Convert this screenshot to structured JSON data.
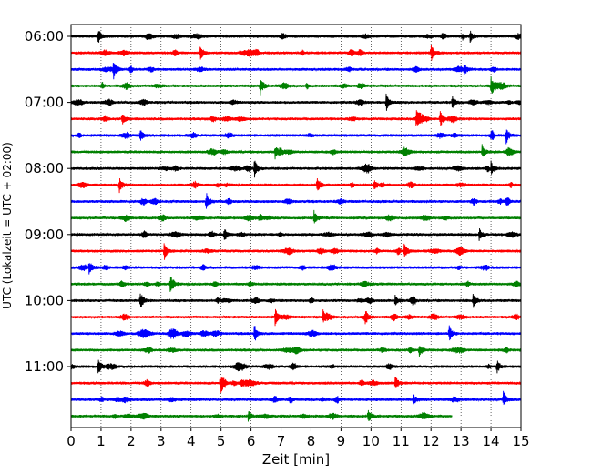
{
  "chart_data": {
    "type": "line",
    "title": "",
    "xlabel": "Zeit  [min]",
    "ylabel": "UTC (Lokalzeit = UTC + 02:00)",
    "xlim": [
      0,
      15
    ],
    "x_ticks": [
      "0",
      "1",
      "2",
      "3",
      "4",
      "5",
      "6",
      "7",
      "8",
      "9",
      "10",
      "11",
      "12",
      "13",
      "14",
      "15"
    ],
    "y_tick_labels": [
      "06:00",
      "07:00",
      "08:00",
      "09:00",
      "10:00",
      "11:00"
    ],
    "y_tick_rows": [
      0,
      4,
      8,
      12,
      16,
      20
    ],
    "rows": 24,
    "last_row_end_min": 12.7,
    "grid": "vertical dotted",
    "colors": [
      "#000000",
      "#ff0000",
      "#0000ff",
      "#008000"
    ],
    "events": [
      {
        "row": 0,
        "t": 13.3
      },
      {
        "row": 0,
        "t": 0.9
      },
      {
        "row": 1,
        "t": 12.0
      },
      {
        "row": 1,
        "t": 4.3
      },
      {
        "row": 2,
        "t": 1.4
      },
      {
        "row": 2,
        "t": 13.1
      },
      {
        "row": 3,
        "t": 14.0
      },
      {
        "row": 3,
        "t": 6.3
      },
      {
        "row": 4,
        "t": 12.7
      },
      {
        "row": 4,
        "t": 10.5
      },
      {
        "row": 5,
        "t": 1.7
      },
      {
        "row": 5,
        "t": 11.5
      },
      {
        "row": 5,
        "t": 12.3
      },
      {
        "row": 6,
        "t": 2.3
      },
      {
        "row": 6,
        "t": 14.5
      },
      {
        "row": 7,
        "t": 6.8
      },
      {
        "row": 7,
        "t": 13.7
      },
      {
        "row": 8,
        "t": 6.1
      },
      {
        "row": 8,
        "t": 14.0
      },
      {
        "row": 9,
        "t": 8.2
      },
      {
        "row": 9,
        "t": 10.1
      },
      {
        "row": 9,
        "t": 1.6
      },
      {
        "row": 10,
        "t": 4.5
      },
      {
        "row": 11,
        "t": 8.1
      },
      {
        "row": 12,
        "t": 5.1
      },
      {
        "row": 12,
        "t": 13.6
      },
      {
        "row": 13,
        "t": 11.1
      },
      {
        "row": 13,
        "t": 3.1
      },
      {
        "row": 14,
        "t": 0.6
      },
      {
        "row": 15,
        "t": 3.3
      },
      {
        "row": 16,
        "t": 10.8
      },
      {
        "row": 16,
        "t": 13.4
      },
      {
        "row": 16,
        "t": 2.3
      },
      {
        "row": 17,
        "t": 8.4
      },
      {
        "row": 17,
        "t": 6.8
      },
      {
        "row": 17,
        "t": 9.8
      },
      {
        "row": 18,
        "t": 12.6
      },
      {
        "row": 18,
        "t": 6.1
      },
      {
        "row": 19,
        "t": 11.6
      },
      {
        "row": 20,
        "t": 0.9
      },
      {
        "row": 20,
        "t": 14.2
      },
      {
        "row": 21,
        "t": 10.8
      },
      {
        "row": 21,
        "t": 5.0
      },
      {
        "row": 22,
        "t": 11.4
      },
      {
        "row": 22,
        "t": 14.4
      },
      {
        "row": 23,
        "t": 5.9
      },
      {
        "row": 23,
        "t": 9.9
      }
    ]
  }
}
